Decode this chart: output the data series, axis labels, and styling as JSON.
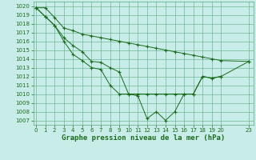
{
  "line1": {
    "x": [
      0,
      1,
      2,
      3,
      4,
      5,
      6,
      7,
      8,
      9,
      10,
      11,
      12,
      13,
      14,
      15,
      16,
      17,
      18,
      19,
      20,
      23
    ],
    "y": [
      1019.8,
      1019.8,
      1018.7,
      1017.5,
      1017.2,
      1016.8,
      1016.6,
      1016.4,
      1016.2,
      1016.0,
      1015.8,
      1015.6,
      1015.4,
      1015.2,
      1015.0,
      1014.8,
      1014.6,
      1014.4,
      1014.2,
      1014.0,
      1013.8,
      1013.7
    ]
  },
  "line2": {
    "x": [
      0,
      1,
      2,
      3,
      4,
      5,
      6,
      7,
      8,
      9,
      10,
      11,
      12,
      13,
      14,
      15,
      16,
      17,
      18,
      19,
      20,
      23
    ],
    "y": [
      1019.8,
      1018.8,
      1017.8,
      1016.4,
      1015.5,
      1014.8,
      1013.7,
      1013.6,
      1013.0,
      1012.5,
      1010.0,
      1010.0,
      1010.0,
      1010.0,
      1010.0,
      1010.0,
      1010.0,
      1010.0,
      1012.0,
      1011.8,
      1012.0,
      1013.7
    ]
  },
  "line3": {
    "x": [
      0,
      1,
      2,
      3,
      4,
      5,
      6,
      7,
      8,
      9,
      10,
      11,
      12,
      13,
      14,
      15,
      16,
      17,
      18,
      19,
      20
    ],
    "y": [
      1019.8,
      1018.8,
      1017.8,
      1016.0,
      1014.5,
      1013.8,
      1013.0,
      1012.8,
      1011.0,
      1010.0,
      1010.0,
      1009.8,
      1007.2,
      1008.0,
      1007.0,
      1008.0,
      1010.0,
      1010.0,
      1012.0,
      1011.8,
      1012.0
    ]
  },
  "line_color": "#1a6b1a",
  "bg_color": "#c8ece8",
  "grid_color": "#5aaa80",
  "xlabel": "Graphe pression niveau de la mer (hPa)",
  "ylim": [
    1006.5,
    1020.5
  ],
  "xlim": [
    -0.3,
    23.5
  ],
  "yticks": [
    1007,
    1008,
    1009,
    1010,
    1011,
    1012,
    1013,
    1014,
    1015,
    1016,
    1017,
    1018,
    1019,
    1020
  ],
  "xticks": [
    0,
    1,
    2,
    3,
    4,
    5,
    6,
    7,
    8,
    9,
    10,
    11,
    12,
    13,
    14,
    15,
    16,
    17,
    18,
    19,
    20,
    23
  ],
  "xlabel_fontsize": 6.5,
  "tick_fontsize": 5.0
}
